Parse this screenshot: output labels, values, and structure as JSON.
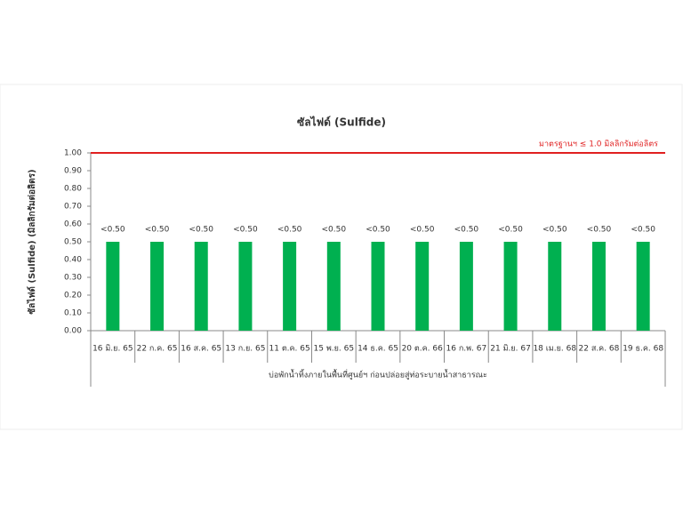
{
  "chart_data": {
    "type": "bar",
    "title": "ซัลไฟด์ (Sulfide)",
    "y_label": "ซัลไฟด์ (Sulfide) (มิลลิกรัมต่อลิตร)",
    "x_group_label": "บ่อพักน้ำทิ้งภายในพื้นที่ศูนย์ฯ ก่อนปล่อยสู่ท่อระบายน้ำสาธารณะ",
    "categories": [
      "16 มิ.ย. 65",
      "22 ก.ค. 65",
      "16 ส.ค. 65",
      "13 ก.ย. 65",
      "11 ต.ค. 65",
      "15 พ.ย. 65",
      "14 ธ.ค. 65",
      "20 ต.ค. 66",
      "16 ก.พ. 67",
      "21 มิ.ย. 67",
      "18 เม.ย. 68",
      "22 ส.ค. 68",
      "19 ธ.ค. 68"
    ],
    "values": [
      0.5,
      0.5,
      0.5,
      0.5,
      0.5,
      0.5,
      0.5,
      0.5,
      0.5,
      0.5,
      0.5,
      0.5,
      0.5
    ],
    "value_labels": [
      "<0.50",
      "<0.50",
      "<0.50",
      "<0.50",
      "<0.50",
      "<0.50",
      "<0.50",
      "<0.50",
      "<0.50",
      "<0.50",
      "<0.50",
      "<0.50",
      "<0.50"
    ],
    "color": "#00b050",
    "ylim": [
      0,
      1
    ],
    "yticks": [
      {
        "value": 0,
        "label": "0.00"
      },
      {
        "value": 0.1,
        "label": "0.10"
      },
      {
        "value": 0.2,
        "label": "0.20"
      },
      {
        "value": 0.3,
        "label": "0.30"
      },
      {
        "value": 0.4,
        "label": "0.40"
      },
      {
        "value": 0.5,
        "label": "0.50"
      },
      {
        "value": 0.6,
        "label": "0.60"
      },
      {
        "value": 0.7,
        "label": "0.70"
      },
      {
        "value": 0.8,
        "label": "0.80"
      },
      {
        "value": 0.9,
        "label": "0.90"
      },
      {
        "value": 1,
        "label": "1.00"
      }
    ],
    "reference_line": {
      "value": 1,
      "label": "มาตรฐานฯ ≤ 1.0 มิลลิกรัมต่อลิตร",
      "color": "#e02020"
    },
    "grid": false
  }
}
